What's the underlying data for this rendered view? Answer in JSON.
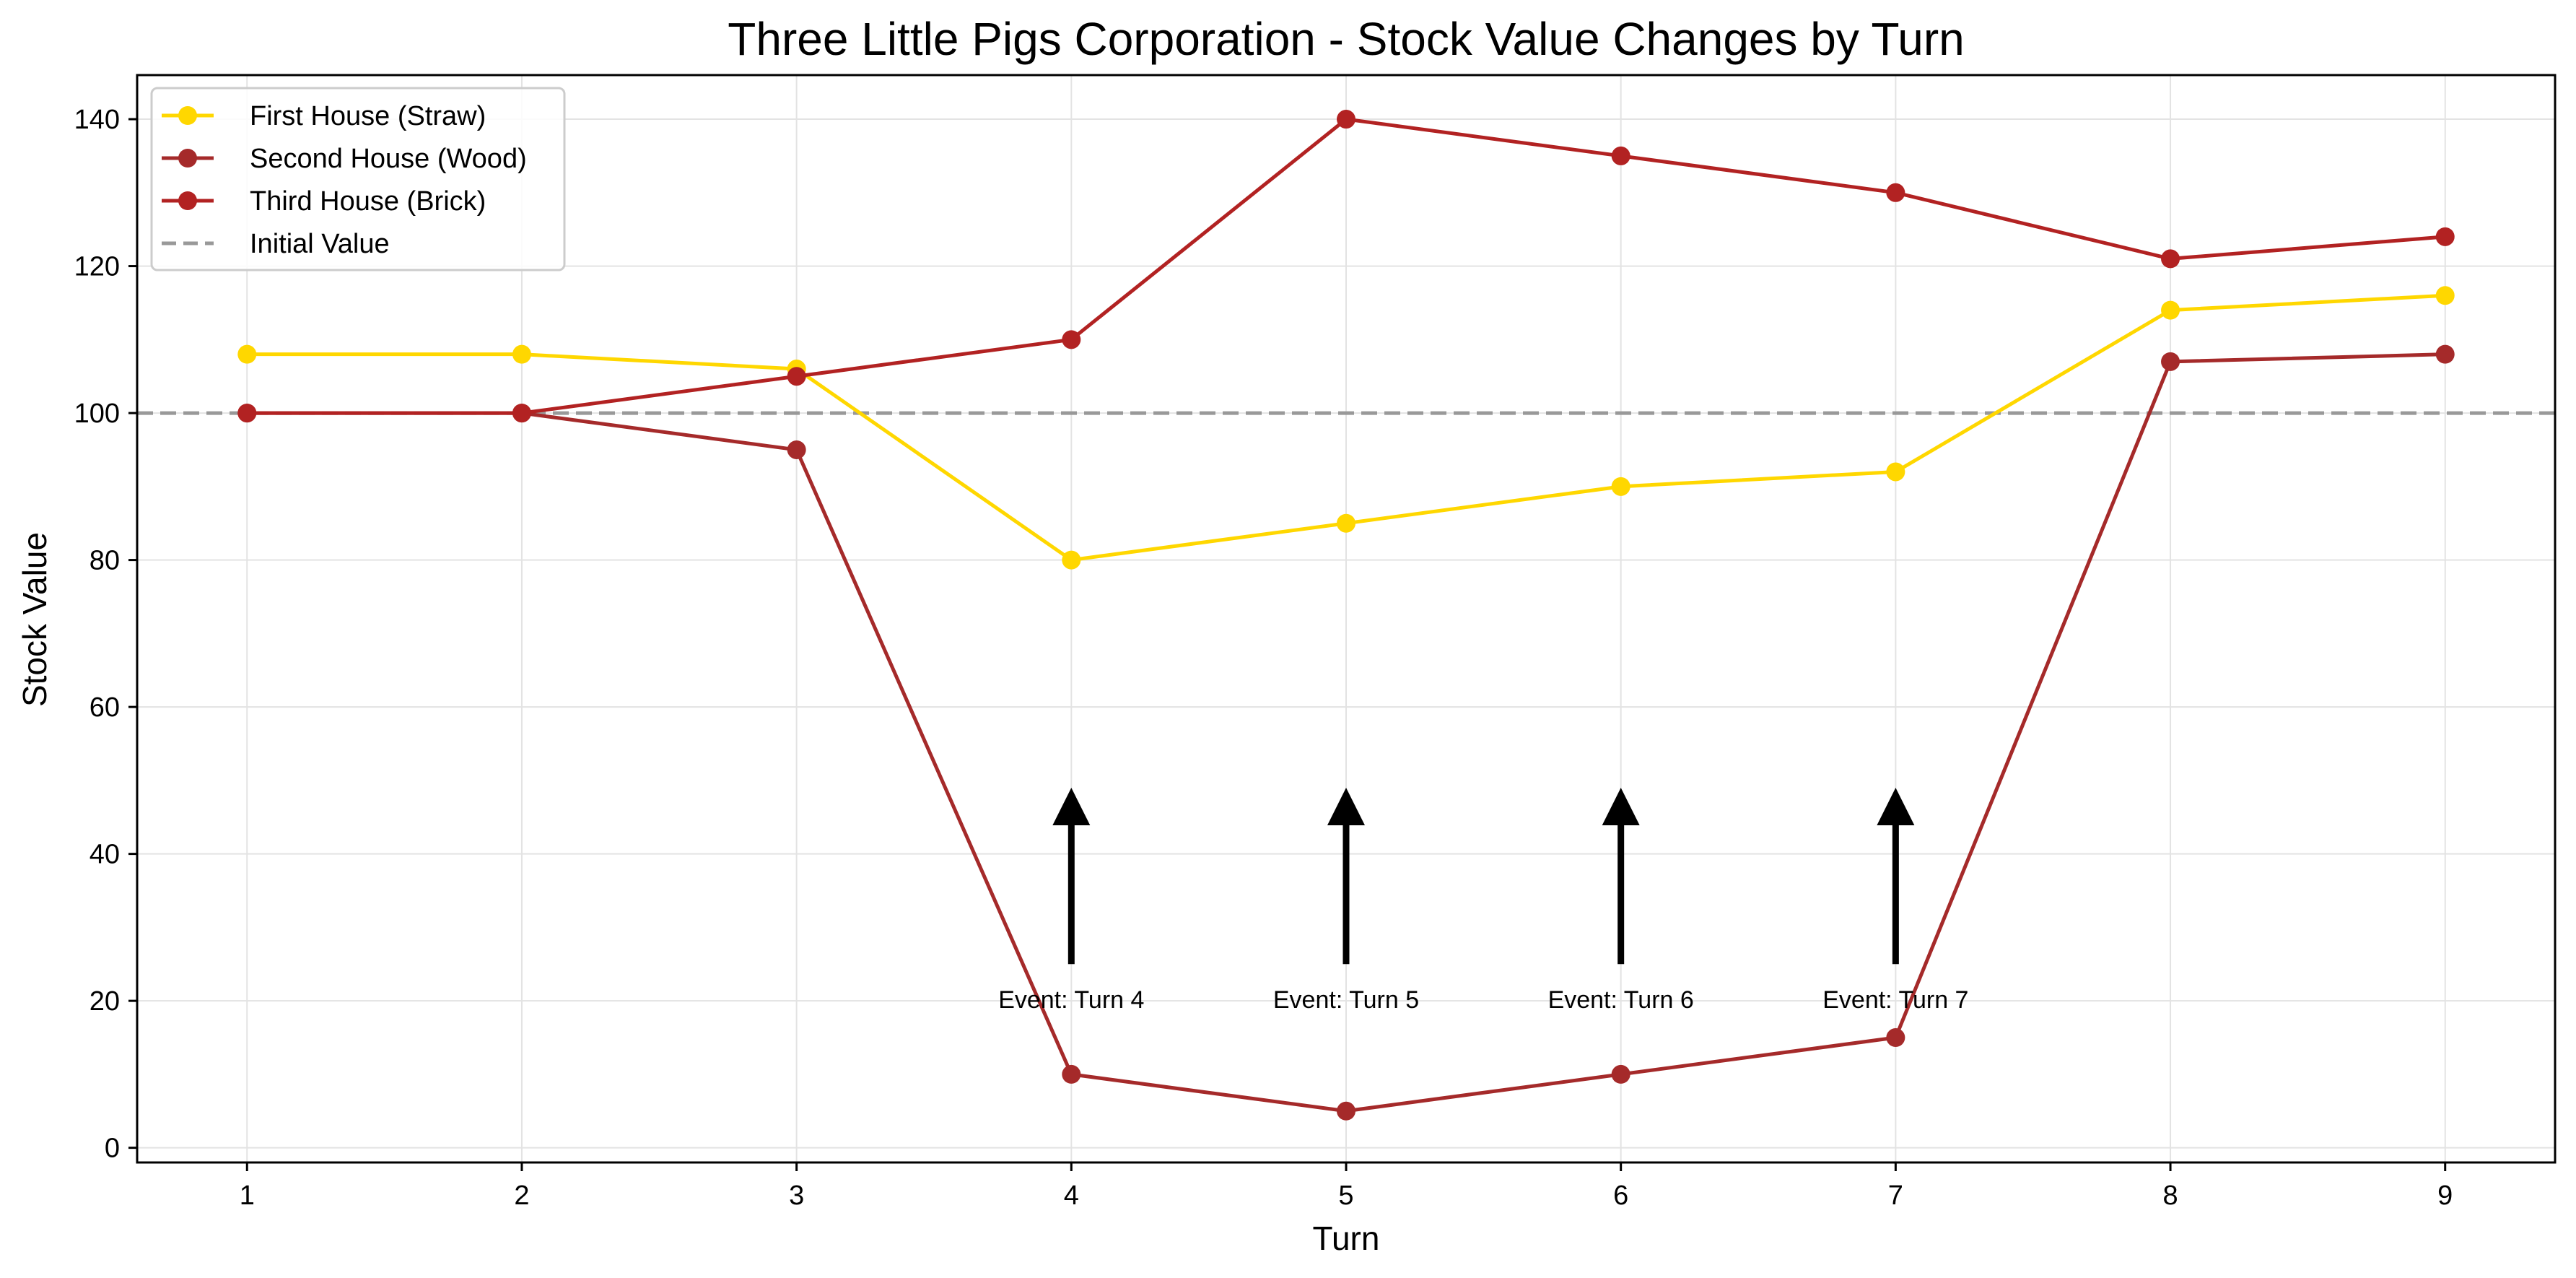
{
  "chart_data": {
    "type": "line",
    "title": "Three Little Pigs Corporation - Stock Value Changes by Turn",
    "xlabel": "Turn",
    "ylabel": "Stock Value",
    "x": [
      1,
      2,
      3,
      4,
      5,
      6,
      7,
      8,
      9
    ],
    "xlim": [
      0.6,
      9.4
    ],
    "ylim": [
      -2,
      146
    ],
    "yticks": [
      0,
      20,
      40,
      60,
      80,
      100,
      120,
      140
    ],
    "grid": true,
    "legend_position": "top-left",
    "series": [
      {
        "name": "First House (Straw)",
        "color": "#FFD700",
        "marker": "circle",
        "values": [
          108,
          108,
          106,
          80,
          85,
          90,
          92,
          114,
          116
        ]
      },
      {
        "name": "Second House (Wood)",
        "color": "#A52A2A",
        "marker": "circle",
        "values": [
          100,
          100,
          95,
          10,
          5,
          10,
          15,
          107,
          108
        ]
      },
      {
        "name": "Third House (Brick)",
        "color": "#B22222",
        "marker": "circle",
        "values": [
          100,
          100,
          105,
          110,
          140,
          135,
          130,
          121,
          124
        ]
      }
    ],
    "reference_line": {
      "name": "Initial Value",
      "y": 100,
      "color": "#999999",
      "style": "dashed"
    },
    "annotations": [
      {
        "text": "Event: Turn 4",
        "x": 4,
        "text_y": 20,
        "arrow_from_y": 25,
        "arrow_to_y": 49
      },
      {
        "text": "Event: Turn 5",
        "x": 5,
        "text_y": 20,
        "arrow_from_y": 25,
        "arrow_to_y": 49
      },
      {
        "text": "Event: Turn 6",
        "x": 6,
        "text_y": 20,
        "arrow_from_y": 25,
        "arrow_to_y": 49
      },
      {
        "text": "Event: Turn 7",
        "x": 7,
        "text_y": 20,
        "arrow_from_y": 25,
        "arrow_to_y": 49
      }
    ]
  }
}
